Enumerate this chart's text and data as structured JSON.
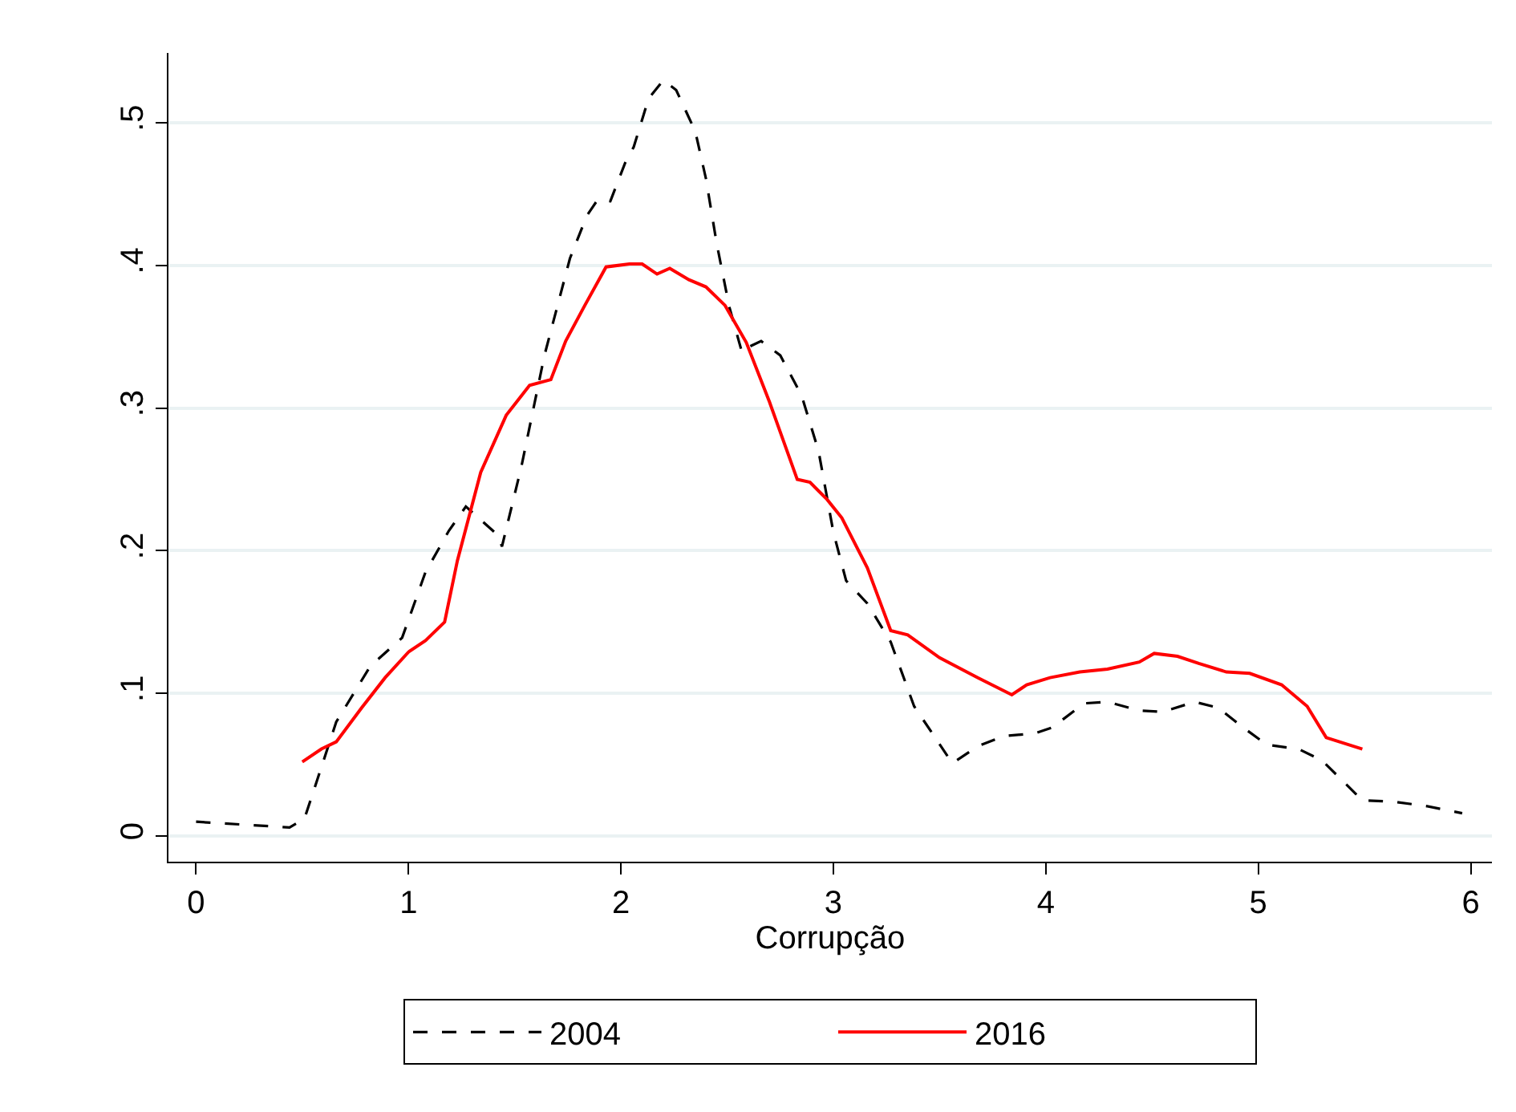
{
  "chart_data": {
    "type": "line",
    "xlabel": "Corrupção",
    "series": [
      {
        "name": "2004",
        "color": "#000000",
        "line_style": "dashed",
        "x": [
          0,
          0.44,
          0.51,
          0.66,
          0.82,
          0.97,
          1.08,
          1.19,
          1.27,
          1.42,
          1.44,
          1.53,
          1.64,
          1.76,
          1.84,
          1.89,
          1.95,
          2.02,
          2.06,
          2.13,
          2.2,
          2.26,
          2.35,
          2.4,
          2.45,
          2.51,
          2.57,
          2.59,
          2.66,
          2.75,
          2.85,
          2.93,
          3.0,
          3.06,
          3.16,
          3.27,
          3.38,
          3.56,
          3.68,
          3.8,
          3.95,
          4.03,
          4.18,
          4.29,
          4.44,
          4.55,
          4.7,
          4.81,
          4.93,
          5.04,
          5.19,
          5.3,
          5.49,
          5.64,
          5.79,
          5.96
        ],
        "values": [
          0.01,
          0.006,
          0.012,
          0.08,
          0.119,
          0.139,
          0.185,
          0.214,
          0.231,
          0.211,
          0.203,
          0.258,
          0.337,
          0.405,
          0.435,
          0.446,
          0.445,
          0.472,
          0.483,
          0.517,
          0.53,
          0.523,
          0.494,
          0.461,
          0.416,
          0.371,
          0.339,
          0.342,
          0.347,
          0.337,
          0.309,
          0.27,
          0.213,
          0.179,
          0.163,
          0.136,
          0.091,
          0.051,
          0.063,
          0.07,
          0.072,
          0.076,
          0.093,
          0.094,
          0.088,
          0.087,
          0.094,
          0.09,
          0.076,
          0.064,
          0.061,
          0.053,
          0.025,
          0.024,
          0.021,
          0.016
        ]
      },
      {
        "name": "2016",
        "color": "#ff0000",
        "line_style": "solid",
        "x": [
          0.5,
          0.59,
          0.66,
          0.78,
          0.89,
          1.0,
          1.08,
          1.17,
          1.23,
          1.34,
          1.46,
          1.57,
          1.67,
          1.74,
          1.83,
          1.93,
          2.04,
          2.1,
          2.17,
          2.23,
          2.32,
          2.4,
          2.49,
          2.59,
          2.7,
          2.83,
          2.89,
          2.97,
          3.04,
          3.16,
          3.27,
          3.35,
          3.5,
          3.68,
          3.84,
          3.91,
          4.02,
          4.16,
          4.29,
          4.44,
          4.51,
          4.62,
          4.72,
          4.85,
          4.96,
          5.11,
          5.23,
          5.32,
          5.49
        ],
        "values": [
          0.052,
          0.061,
          0.066,
          0.09,
          0.111,
          0.129,
          0.137,
          0.15,
          0.193,
          0.255,
          0.295,
          0.316,
          0.32,
          0.347,
          0.372,
          0.399,
          0.401,
          0.401,
          0.394,
          0.398,
          0.39,
          0.385,
          0.372,
          0.346,
          0.304,
          0.25,
          0.248,
          0.236,
          0.223,
          0.188,
          0.144,
          0.141,
          0.125,
          0.111,
          0.099,
          0.106,
          0.111,
          0.115,
          0.117,
          0.122,
          0.128,
          0.126,
          0.121,
          0.115,
          0.114,
          0.106,
          0.091,
          0.069,
          0.061
        ]
      }
    ],
    "xlim": [
      -0.13,
      6.1
    ],
    "xticks": [
      0,
      1,
      2,
      3,
      4,
      5,
      6
    ],
    "ylim": [
      -0.018,
      0.549
    ],
    "yticks": [
      0,
      {
        "value": 0.1,
        "label": ".1"
      },
      {
        "value": 0.2,
        "label": ".2"
      },
      {
        "value": 0.3,
        "label": ".3"
      },
      {
        "value": 0.4,
        "label": ".4"
      },
      {
        "value": 0.5,
        "label": ".5"
      }
    ],
    "grid": "y",
    "legend": "bottom",
    "marker": "none"
  }
}
